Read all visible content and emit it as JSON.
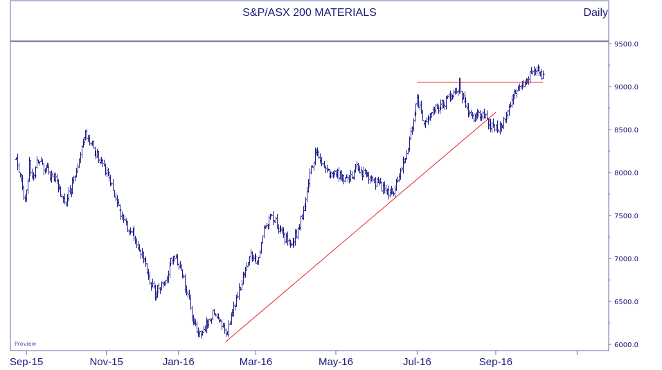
{
  "chart_data": {
    "type": "bar",
    "subtype": "ohlc-daily",
    "title": "S&P/ASX 200 MATERIALS",
    "period": "Daily",
    "watermark": "Proview",
    "ylim": [
      6000,
      9500
    ],
    "yticks": [
      "6000.0",
      "6500.0",
      "7000.0",
      "7500.0",
      "8000.0",
      "8500.0",
      "9000.0",
      "9500.0"
    ],
    "ytick_values": [
      6000,
      6500,
      7000,
      7500,
      8000,
      8500,
      9000,
      9500
    ],
    "xticks": [
      "Sep-15",
      "Nov-15",
      "Jan-16",
      "Mar-16",
      "May-16",
      "Jul-16",
      "Sep-16"
    ],
    "x_day_range": [
      0,
      276
    ],
    "xtick_days": [
      8,
      69,
      124,
      183,
      244,
      306,
      366
    ],
    "trend_close_anchors": [
      [
        0,
        8150
      ],
      [
        3,
        7950
      ],
      [
        7,
        7650
      ],
      [
        10,
        8100
      ],
      [
        13,
        7950
      ],
      [
        17,
        8150
      ],
      [
        20,
        8050
      ],
      [
        25,
        8000
      ],
      [
        30,
        7900
      ],
      [
        37,
        7650
      ],
      [
        42,
        7800
      ],
      [
        47,
        8100
      ],
      [
        52,
        8450
      ],
      [
        57,
        8350
      ],
      [
        62,
        8200
      ],
      [
        67,
        8050
      ],
      [
        72,
        7900
      ],
      [
        76,
        7650
      ],
      [
        81,
        7450
      ],
      [
        86,
        7350
      ],
      [
        91,
        7250
      ],
      [
        96,
        7050
      ],
      [
        101,
        6800
      ],
      [
        106,
        6600
      ],
      [
        111,
        6700
      ],
      [
        116,
        6850
      ],
      [
        120,
        7050
      ],
      [
        126,
        6900
      ],
      [
        131,
        6550
      ],
      [
        136,
        6200
      ],
      [
        141,
        6100
      ],
      [
        146,
        6250
      ],
      [
        151,
        6400
      ],
      [
        156,
        6300
      ],
      [
        160,
        6080
      ],
      [
        164,
        6300
      ],
      [
        169,
        6550
      ],
      [
        174,
        6850
      ],
      [
        179,
        7050
      ],
      [
        184,
        6950
      ],
      [
        189,
        7350
      ],
      [
        194,
        7500
      ],
      [
        199,
        7400
      ],
      [
        204,
        7250
      ],
      [
        209,
        7150
      ],
      [
        214,
        7300
      ],
      [
        219,
        7550
      ],
      [
        224,
        8000
      ],
      [
        229,
        8250
      ],
      [
        234,
        8100
      ],
      [
        239,
        7950
      ],
      [
        244,
        8000
      ],
      [
        249,
        7950
      ],
      [
        254,
        7900
      ],
      [
        259,
        8050
      ],
      [
        265,
        8000
      ],
      [
        270,
        7950
      ],
      [
        276,
        7850
      ]
    ],
    "trendlines": [
      {
        "from": [
          160,
          6030
        ],
        "to": [
          366,
          8700
        ],
        "color": "#f02020"
      },
      {
        "from": [
          306,
          9050
        ],
        "to": [
          402,
          9050
        ],
        "color": "#f02020"
      }
    ]
  }
}
